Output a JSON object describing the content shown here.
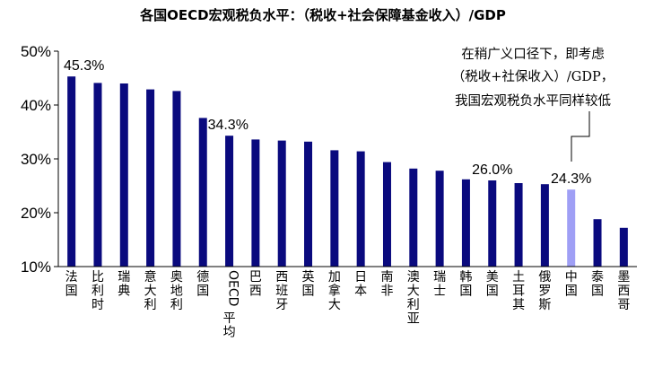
{
  "chart_data": {
    "type": "bar",
    "title": "各国OECD宏观税负水平：（税收+社会保障基金收入）/GDP",
    "xlabel": "",
    "ylabel": "",
    "ylim": [
      10,
      50
    ],
    "yticks": [
      "10%",
      "20%",
      "30%",
      "40%",
      "50%"
    ],
    "grid": false,
    "legend": "none",
    "categories": [
      "法国",
      "比利时",
      "瑞典",
      "意大利",
      "奥地利",
      "德国",
      "OECD平均",
      "巴西",
      "西班牙",
      "英国",
      "加拿大",
      "日本",
      "南非",
      "澳大利亚",
      "瑞士",
      "韩国",
      "美国",
      "土耳其",
      "俄罗斯",
      "中国",
      "泰国",
      "墨西哥"
    ],
    "values": [
      45.3,
      44.1,
      44.0,
      42.9,
      42.6,
      37.6,
      34.3,
      33.6,
      33.4,
      33.2,
      31.6,
      31.4,
      29.4,
      28.2,
      27.8,
      26.2,
      26.0,
      25.5,
      25.3,
      24.3,
      18.8,
      17.2
    ],
    "data_labels": [
      {
        "category": "法国",
        "text": "45.3%"
      },
      {
        "category": "OECD平均",
        "text": "34.3%"
      },
      {
        "category": "美国",
        "text": "26.0%"
      },
      {
        "category": "中国",
        "text": "24.3%"
      }
    ],
    "highlight_category": "中国",
    "annotation": [
      "在稍广义口径下，即考虑",
      "（税收+社保收入）/GDP，",
      "我国宏观税负水平同样较低"
    ],
    "colors": {
      "bar": "#0a0a7e",
      "highlight": "#9f9ff5",
      "axis": "#000000"
    }
  }
}
